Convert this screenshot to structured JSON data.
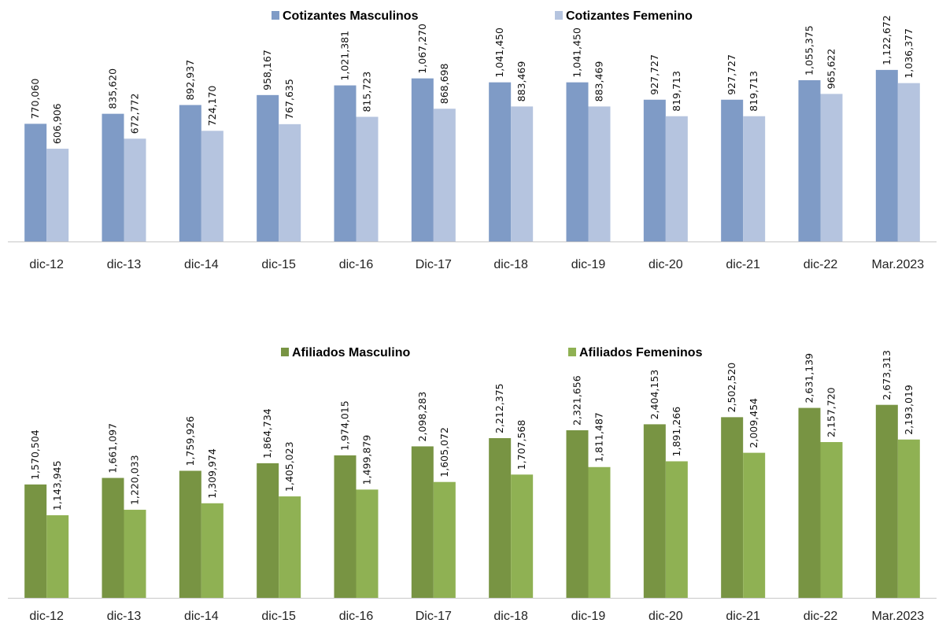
{
  "chart_data": [
    {
      "type": "bar",
      "title": "",
      "xlabel": "",
      "ylabel": "",
      "legend_position": "top-center",
      "grid": false,
      "ylim": [
        0,
        1400000
      ],
      "categories": [
        "dic-12",
        "dic-13",
        "dic-14",
        "dic-15",
        "dic-16",
        "Dic-17",
        "dic-18",
        "dic-19",
        "dic-20",
        "dic-21",
        "dic-22",
        "Mar.2023"
      ],
      "series": [
        {
          "name": "Cotizantes Masculinos",
          "color": "#7f9bc6",
          "values": [
            770060,
            835620,
            892937,
            958167,
            1021381,
            1067270,
            1041450,
            1041450,
            927727,
            927727,
            1055375,
            1122672
          ],
          "labels": [
            "770,060",
            "835,620",
            "892,937",
            "958,167",
            "1,021,381",
            "1,067,270",
            "1,041,450",
            "1,041,450",
            "927,727",
            "927,727",
            "1,055,375",
            "1,122,672"
          ]
        },
        {
          "name": "Cotizantes Femenino",
          "color": "#b5c4df",
          "values": [
            606906,
            672772,
            724170,
            767635,
            815723,
            868698,
            883469,
            883469,
            819713,
            819713,
            965622,
            1036377
          ],
          "labels": [
            "606,906",
            "672,772",
            "724,170",
            "767,635",
            "815,723",
            "868,698",
            "883,469",
            "883,469",
            "819,713",
            "819,713",
            "965,622",
            "1,036,377"
          ]
        }
      ]
    },
    {
      "type": "bar",
      "title": "",
      "xlabel": "",
      "ylabel": "",
      "legend_position": "top-center",
      "grid": false,
      "ylim": [
        0,
        3400000
      ],
      "categories": [
        "dic-12",
        "dic-13",
        "dic-14",
        "dic-15",
        "dic-16",
        "Dic-17",
        "dic-18",
        "dic-19",
        "dic-20",
        "dic-21",
        "dic-22",
        "Mar.2023"
      ],
      "series": [
        {
          "name": "Afiliados Masculino",
          "color": "#789443",
          "values": [
            1570504,
            1661097,
            1759926,
            1864734,
            1974015,
            2098283,
            2212375,
            2321656,
            2404153,
            2502520,
            2631139,
            2673313
          ],
          "labels": [
            "1,570,504",
            "1,661,097",
            "1,759,926",
            "1,864,734",
            "1,974,015",
            "2,098,283",
            "2,212,375",
            "2,321,656",
            "2,404,153",
            "2,502,520",
            "2,631,139",
            "2,673,313"
          ]
        },
        {
          "name": "Afiliados Femeninos",
          "color": "#8fb153",
          "values": [
            1143945,
            1220033,
            1309974,
            1405023,
            1499879,
            1605072,
            1707568,
            1811487,
            1891266,
            2009454,
            2157720,
            2193019
          ],
          "labels": [
            "1,143,945",
            "1,220,033",
            "1,309,974",
            "1,405,023",
            "1,499,879",
            "1,605,072",
            "1,707,568",
            "1,811,487",
            "1,891,266",
            "2,009,454",
            "2,157,720",
            "2,193,019"
          ]
        }
      ]
    }
  ]
}
